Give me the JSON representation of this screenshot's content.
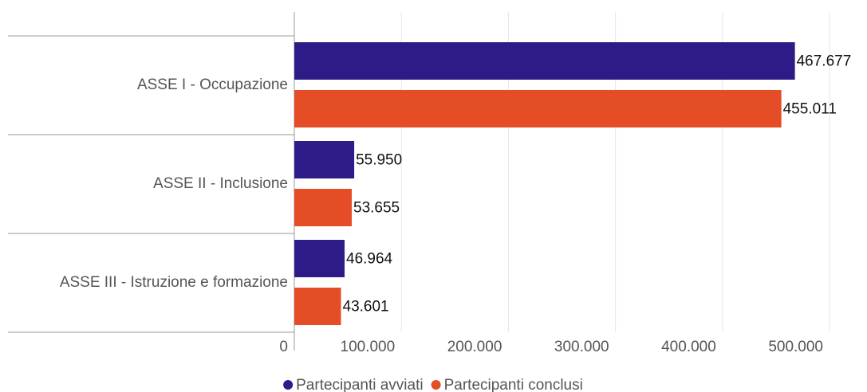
{
  "chart_data": {
    "type": "bar",
    "orientation": "horizontal",
    "categories": [
      "ASSE I - Occupazione",
      "ASSE II - Inclusione",
      "ASSE III - Istruzione e formazione"
    ],
    "series": [
      {
        "name": "Partecipanti avviati",
        "color": "#2f1b87",
        "values": [
          467677,
          55950,
          46964
        ],
        "value_labels": [
          "467.677",
          "55.950",
          "46.964"
        ]
      },
      {
        "name": "Partecipanti conclusi",
        "color": "#e44d26",
        "values": [
          455011,
          53655,
          43601
        ],
        "value_labels": [
          "455.011",
          "53.655",
          "43.601"
        ]
      }
    ],
    "xlim": [
      0,
      500000
    ],
    "xticks": [
      0,
      {
        "value": 100000,
        "label": "100.000"
      },
      {
        "value": 200000,
        "label": "200.000"
      },
      {
        "value": 300000,
        "label": "300.000"
      },
      {
        "value": 400000,
        "label": "400.000"
      },
      {
        "value": 500000,
        "label": "500.000"
      }
    ],
    "grid": true,
    "legend": "bottom"
  }
}
